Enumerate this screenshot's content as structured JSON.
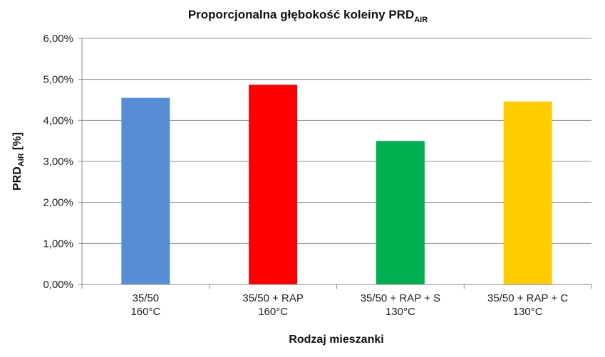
{
  "chart_data": {
    "type": "bar",
    "title": "Proporcjonalna głębokość koleiny PRD",
    "title_subscript": "AIR",
    "xlabel": "Rodzaj mieszanki",
    "ylabel": "PRD",
    "ylabel_subscript": "AIR",
    "ylabel_suffix": " [%]",
    "categories": [
      [
        "35/50",
        "160°C"
      ],
      [
        "35/50 + RAP",
        "160°C"
      ],
      [
        "35/50 + RAP + S",
        "130°C"
      ],
      [
        "35/50 + RAP + C",
        "130°C"
      ]
    ],
    "values": [
      4.55,
      4.87,
      3.5,
      4.46
    ],
    "colors": [
      "#558ED5",
      "#FF0000",
      "#00B050",
      "#FFCC00"
    ],
    "ylim": [
      0,
      6
    ],
    "yticks": [
      {
        "value": 0,
        "label": "0,00%"
      },
      {
        "value": 1,
        "label": "1,00%"
      },
      {
        "value": 2,
        "label": "2,00%"
      },
      {
        "value": 3,
        "label": "3,00%"
      },
      {
        "value": 4,
        "label": "4,00%"
      },
      {
        "value": 5,
        "label": "5,00%"
      },
      {
        "value": 6,
        "label": "6,00%"
      }
    ],
    "grid": true,
    "gridline_color": "#8c8c8c",
    "legend": "none"
  }
}
